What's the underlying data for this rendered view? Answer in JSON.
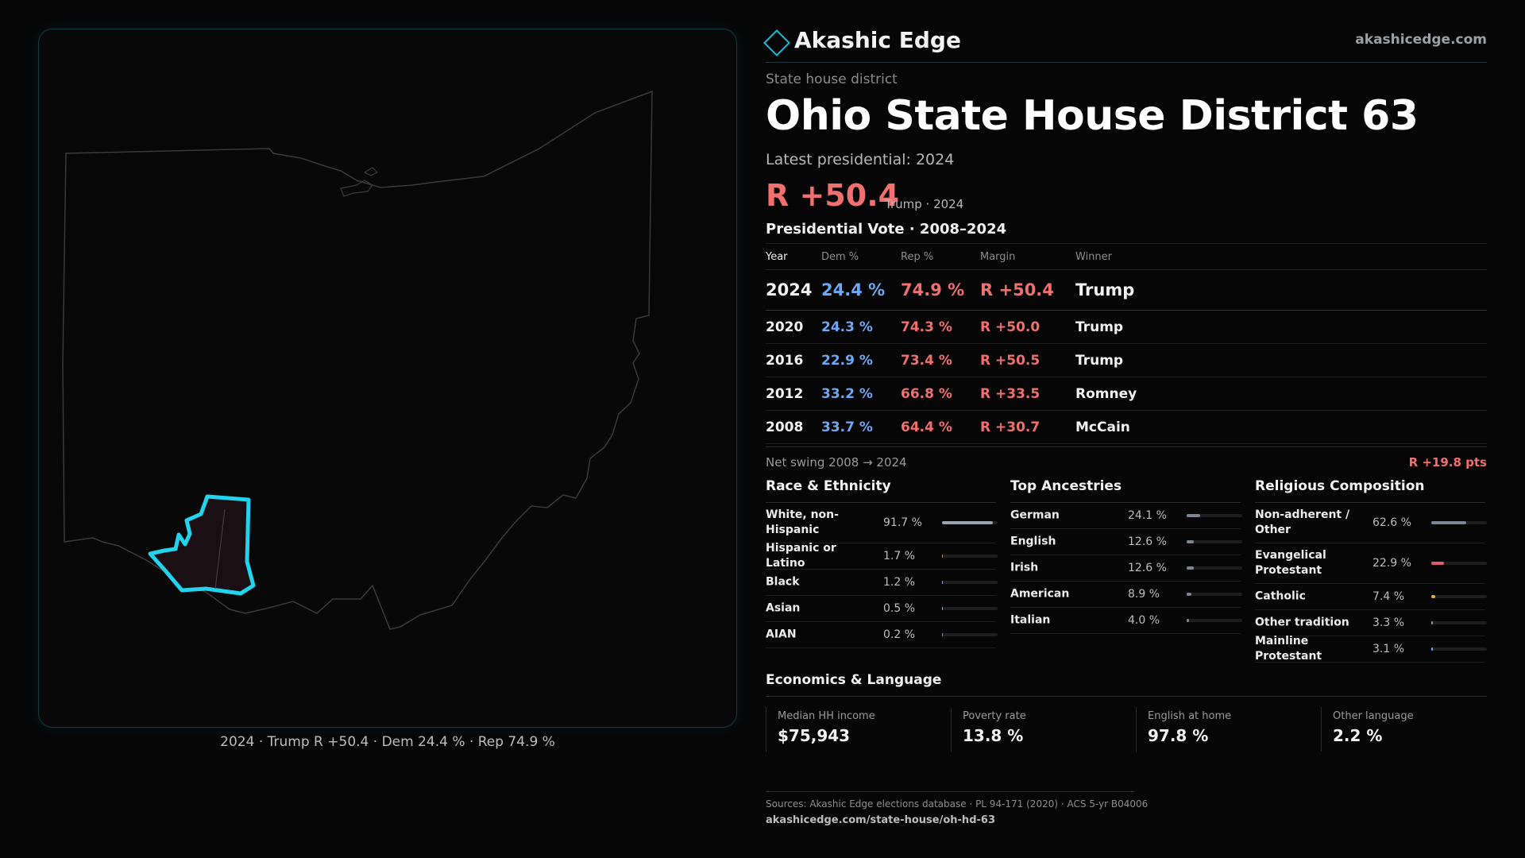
{
  "header": {
    "brand_name": "Akashic Edge",
    "brand_url": "akashicedge.com",
    "logo_icon": "diamond-logo-icon",
    "accent_color": "#1fb9cf"
  },
  "district": {
    "kicker": "State house district",
    "title": "Ohio State House District 63",
    "latest_label": "Latest presidential: 2024",
    "margin": "R +50.4",
    "margin_sub": "Trump · 2024"
  },
  "map": {
    "caption": "2024 · Trump R +50.4 · Dem 24.4 % · Rep 74.9 %",
    "highlight_color": "#22d3ee"
  },
  "pres_vote": {
    "title": "Presidential Vote · 2008–2024",
    "headers": {
      "year": "Year",
      "dem": "Dem %",
      "rep": "Rep %",
      "margin": "Margin",
      "winner": "Winner"
    },
    "rows": [
      {
        "year": "2024",
        "dem": "24.4 %",
        "rep": "74.9 %",
        "margin": "R +50.4",
        "winner": "Trump"
      },
      {
        "year": "2020",
        "dem": "24.3 %",
        "rep": "74.3 %",
        "margin": "R +50.0",
        "winner": "Trump"
      },
      {
        "year": "2016",
        "dem": "22.9 %",
        "rep": "73.4 %",
        "margin": "R +50.5",
        "winner": "Trump"
      },
      {
        "year": "2012",
        "dem": "33.2 %",
        "rep": "66.8 %",
        "margin": "R +33.5",
        "winner": "Romney"
      },
      {
        "year": "2008",
        "dem": "33.7 %",
        "rep": "64.4 %",
        "margin": "R +30.7",
        "winner": "McCain"
      }
    ],
    "swing_label": "Net swing 2008 → 2024",
    "swing_value": "R +19.8 pts"
  },
  "race": {
    "title": "Race & Ethnicity",
    "rows": [
      {
        "label": "White, non-Hispanic",
        "value": "91.7 %",
        "pct": 91.7,
        "color": "#9aa3b0"
      },
      {
        "label": "Hispanic or Latino",
        "value": "1.7 %",
        "pct": 1.7,
        "color": "#c79a3c"
      },
      {
        "label": "Black",
        "value": "1.2 %",
        "pct": 1.2,
        "color": "#8a9bd0"
      },
      {
        "label": "Asian",
        "value": "0.5 %",
        "pct": 0.5,
        "color": "#7fb0c0"
      },
      {
        "label": "AIAN",
        "value": "0.2 %",
        "pct": 0.2,
        "color": "#a080c0"
      }
    ]
  },
  "ancestry": {
    "title": "Top Ancestries",
    "rows": [
      {
        "label": "German",
        "value": "24.1 %",
        "pct": 24.1,
        "color": "#7c8594"
      },
      {
        "label": "English",
        "value": "12.6 %",
        "pct": 12.6,
        "color": "#7c8594"
      },
      {
        "label": "Irish",
        "value": "12.6 %",
        "pct": 12.6,
        "color": "#7c8594"
      },
      {
        "label": "American",
        "value": "8.9 %",
        "pct": 8.9,
        "color": "#7c8594"
      },
      {
        "label": "Italian",
        "value": "4.0 %",
        "pct": 4.0,
        "color": "#7c8594"
      }
    ]
  },
  "religion": {
    "title": "Religious Composition",
    "rows": [
      {
        "label": "Non-adherent / Other",
        "value": "62.6 %",
        "pct": 62.6,
        "color": "#7c8594"
      },
      {
        "label": "Evangelical Protestant",
        "value": "22.9 %",
        "pct": 22.9,
        "color": "#e05a6a"
      },
      {
        "label": "Catholic",
        "value": "7.4 %",
        "pct": 7.4,
        "color": "#e0b040"
      },
      {
        "label": "Other tradition",
        "value": "3.3 %",
        "pct": 3.3,
        "color": "#9a9a9a"
      },
      {
        "label": "Mainline Protestant",
        "value": "3.1 %",
        "pct": 3.1,
        "color": "#6ea8f5"
      }
    ]
  },
  "economics": {
    "title": "Economics & Language",
    "items": [
      {
        "label": "Median HH income",
        "value": "$75,943"
      },
      {
        "label": "Poverty rate",
        "value": "13.8 %"
      },
      {
        "label": "English at home",
        "value": "97.8 %"
      },
      {
        "label": "Other language",
        "value": "2.2 %"
      }
    ]
  },
  "sources": {
    "line1": "Sources: Akashic Edge elections database · PL 94-171 (2020) · ACS 5-yr B04006",
    "link": "akashicedge.com/state-house/oh-hd-63"
  }
}
